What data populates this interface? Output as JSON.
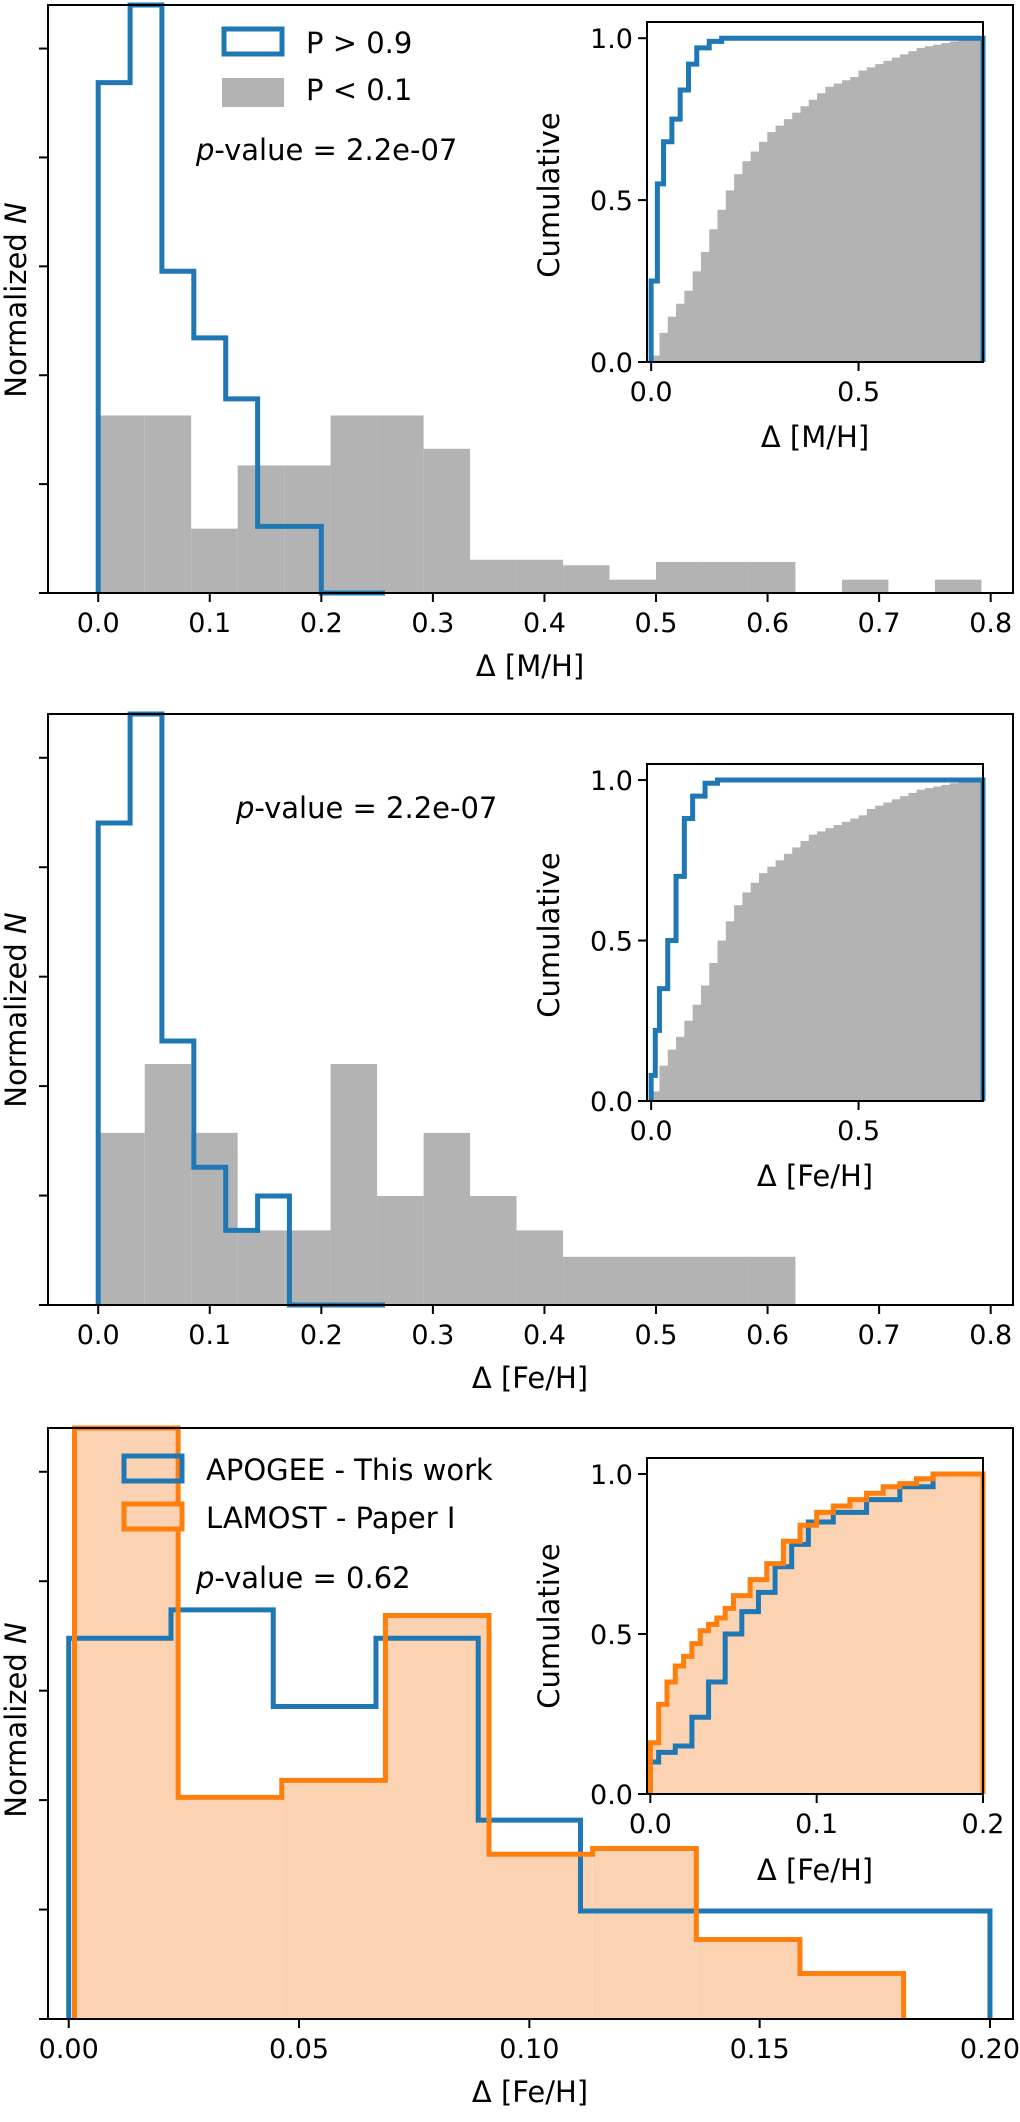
{
  "colors": {
    "blue": "#1f77b4",
    "orange": "#ff7f0e",
    "gray": "#b3b3b3",
    "orange_fill": "#fbd3b3"
  },
  "chart_data": [
    {
      "type": "histogram",
      "id": "panel1",
      "xlabel": "Δ [M/H]",
      "ylabel": "Normalized N",
      "xlim": [
        -0.045,
        0.82
      ],
      "ylim": [
        0,
        5.3
      ],
      "xticks": [
        "0.0",
        "0.1",
        "0.2",
        "0.3",
        "0.4",
        "0.5",
        "0.6",
        "0.7",
        "0.8"
      ],
      "annotation": "p-value = 2.2e-07",
      "legend": [
        "P > 0.9",
        "P < 0.1"
      ],
      "series": [
        {
          "name": "P > 0.9",
          "style": "step",
          "edges": [
            0.0,
            0.0286,
            0.0571,
            0.0857,
            0.1143,
            0.1429,
            0.1714,
            0.2,
            0.2286,
            0.2571
          ],
          "values": [
            4.6,
            5.3,
            2.9,
            2.3,
            1.75,
            0.6,
            0.6,
            0.0,
            0.0
          ]
        },
        {
          "name": "P < 0.1",
          "style": "fill",
          "edges": [
            0.0,
            0.0417,
            0.0833,
            0.125,
            0.1667,
            0.2083,
            0.25,
            0.2917,
            0.3333,
            0.375,
            0.4167,
            0.4583,
            0.5,
            0.5417,
            0.5833,
            0.625,
            0.6667,
            0.7083,
            0.75,
            0.7917
          ],
          "values": [
            1.6,
            1.6,
            0.58,
            1.15,
            1.15,
            1.6,
            1.6,
            1.3,
            0.3,
            0.3,
            0.25,
            0.12,
            0.28,
            0.28,
            0.28,
            0.0,
            0.12,
            0.0,
            0.12
          ]
        }
      ],
      "inset": {
        "xlabel": "Δ [M/H]",
        "ylabel": "Cumulative",
        "xlim": [
          -0.01,
          0.8
        ],
        "ylim": [
          0,
          1.05
        ],
        "xticks": [
          "0.0",
          "0.5"
        ],
        "yticks": [
          "0.0",
          "0.5",
          "1.0"
        ],
        "series": [
          {
            "name": "P > 0.9",
            "style": "step",
            "x": [
              0.0,
              0.015,
              0.03,
              0.05,
              0.07,
              0.09,
              0.11,
              0.14,
              0.17,
              0.8
            ],
            "y": [
              0.25,
              0.55,
              0.68,
              0.75,
              0.84,
              0.92,
              0.97,
              0.99,
              1.0,
              1.0
            ]
          },
          {
            "name": "P < 0.1",
            "style": "fill",
            "x": [
              0.0,
              0.02,
              0.04,
              0.06,
              0.08,
              0.1,
              0.12,
              0.14,
              0.16,
              0.18,
              0.2,
              0.22,
              0.24,
              0.26,
              0.28,
              0.3,
              0.32,
              0.34,
              0.36,
              0.38,
              0.4,
              0.42,
              0.44,
              0.46,
              0.48,
              0.5,
              0.52,
              0.54,
              0.56,
              0.58,
              0.6,
              0.62,
              0.64,
              0.66,
              0.68,
              0.7,
              0.72,
              0.74,
              0.76,
              0.78
            ],
            "y": [
              0.02,
              0.09,
              0.14,
              0.18,
              0.22,
              0.28,
              0.34,
              0.41,
              0.47,
              0.53,
              0.58,
              0.62,
              0.65,
              0.68,
              0.71,
              0.73,
              0.75,
              0.77,
              0.79,
              0.81,
              0.83,
              0.85,
              0.86,
              0.87,
              0.88,
              0.9,
              0.91,
              0.92,
              0.93,
              0.94,
              0.95,
              0.96,
              0.97,
              0.975,
              0.98,
              0.985,
              0.99,
              0.995,
              1.0,
              1.0
            ]
          }
        ]
      }
    },
    {
      "type": "histogram",
      "id": "panel2",
      "xlabel": "Δ [Fe/H]",
      "ylabel": "Normalized N",
      "xlim": [
        -0.045,
        0.82
      ],
      "ylim": [
        0,
        5.15
      ],
      "xticks": [
        "0.0",
        "0.1",
        "0.2",
        "0.3",
        "0.4",
        "0.5",
        "0.6",
        "0.7",
        "0.8"
      ],
      "annotation": "p-value = 2.2e-07",
      "series": [
        {
          "name": "P > 0.9",
          "style": "step",
          "edges": [
            0.0,
            0.0286,
            0.0571,
            0.0857,
            0.1143,
            0.1429,
            0.1714,
            0.2,
            0.2286,
            0.2571
          ],
          "values": [
            4.2,
            5.15,
            2.3,
            1.2,
            0.65,
            0.95,
            0.0,
            0.0,
            0.0
          ]
        },
        {
          "name": "P < 0.1",
          "style": "fill",
          "edges": [
            0.0,
            0.0417,
            0.0833,
            0.125,
            0.1667,
            0.2083,
            0.25,
            0.2917,
            0.3333,
            0.375,
            0.4167,
            0.4583,
            0.5,
            0.5417,
            0.5833,
            0.625,
            0.6667,
            0.7083,
            0.75,
            0.7917
          ],
          "values": [
            1.5,
            2.1,
            1.5,
            0.65,
            0.65,
            2.1,
            0.95,
            1.5,
            0.95,
            0.65,
            0.42,
            0.42,
            0.42,
            0.42,
            0.42,
            0.0,
            0.0,
            0.0,
            0.0
          ]
        }
      ],
      "inset": {
        "xlabel": "Δ [Fe/H]",
        "ylabel": "Cumulative",
        "xlim": [
          -0.01,
          0.8
        ],
        "ylim": [
          0,
          1.05
        ],
        "xticks": [
          "0.0",
          "0.5"
        ],
        "yticks": [
          "0.0",
          "0.5",
          "1.0"
        ],
        "series": [
          {
            "name": "P > 0.9",
            "style": "step",
            "x": [
              0.0,
              0.01,
              0.02,
              0.04,
              0.06,
              0.08,
              0.1,
              0.13,
              0.16,
              0.8
            ],
            "y": [
              0.08,
              0.22,
              0.35,
              0.5,
              0.7,
              0.88,
              0.95,
              0.99,
              1.0,
              1.0
            ]
          },
          {
            "name": "P < 0.1",
            "style": "fill",
            "x": [
              0.0,
              0.02,
              0.04,
              0.06,
              0.08,
              0.1,
              0.12,
              0.14,
              0.16,
              0.18,
              0.2,
              0.22,
              0.24,
              0.26,
              0.28,
              0.3,
              0.32,
              0.34,
              0.36,
              0.38,
              0.4,
              0.42,
              0.44,
              0.46,
              0.48,
              0.5,
              0.52,
              0.54,
              0.56,
              0.58,
              0.6,
              0.62,
              0.64,
              0.66,
              0.68,
              0.7,
              0.72,
              0.74,
              0.76,
              0.78
            ],
            "y": [
              0.03,
              0.11,
              0.16,
              0.2,
              0.25,
              0.3,
              0.36,
              0.43,
              0.5,
              0.56,
              0.61,
              0.65,
              0.68,
              0.71,
              0.73,
              0.75,
              0.77,
              0.79,
              0.81,
              0.83,
              0.84,
              0.85,
              0.86,
              0.87,
              0.88,
              0.89,
              0.91,
              0.92,
              0.93,
              0.94,
              0.95,
              0.96,
              0.97,
              0.975,
              0.98,
              0.985,
              0.99,
              0.995,
              1.0,
              1.0
            ]
          }
        ]
      }
    },
    {
      "type": "histogram",
      "id": "panel3",
      "xlabel": "Δ [Fe/H]",
      "ylabel": "Normalized N",
      "xlim": [
        -0.0045,
        0.205
      ],
      "ylim": [
        0,
        5.2
      ],
      "xticks": [
        "0.00",
        "0.05",
        "0.10",
        "0.15",
        "0.20"
      ],
      "annotation": "p-value = 0.62",
      "legend": [
        "APOGEE - This work",
        "LAMOST - Paper I"
      ],
      "series": [
        {
          "name": "APOGEE - This work",
          "style": "step",
          "color": "blue",
          "edges": [
            0.0,
            0.0222,
            0.0444,
            0.0667,
            0.0889,
            0.1111,
            0.1333,
            0.1556,
            0.1778,
            0.2
          ],
          "values": [
            3.35,
            3.6,
            2.75,
            3.35,
            1.75,
            0.95,
            0.95,
            0.95,
            0.95
          ]
        },
        {
          "name": "LAMOST - Paper I",
          "style": "stepfilled",
          "color": "orange",
          "edges": [
            0.00125,
            0.02375,
            0.04625,
            0.06875,
            0.09125,
            0.11375,
            0.13625,
            0.15875,
            0.18125
          ],
          "values": [
            5.2,
            1.95,
            2.1,
            3.55,
            1.45,
            1.5,
            0.7,
            0.4
          ]
        }
      ],
      "inset": {
        "xlabel": "Δ [Fe/H]",
        "ylabel": "Cumulative",
        "xlim": [
          -0.002,
          0.2
        ],
        "ylim": [
          0,
          1.05
        ],
        "xticks": [
          "0.0",
          "0.1",
          "0.2"
        ],
        "yticks": [
          "0.0",
          "0.5",
          "1.0"
        ],
        "series": [
          {
            "name": "APOGEE - This work",
            "style": "step",
            "color": "blue",
            "x": [
              0.0,
              0.005,
              0.015,
              0.025,
              0.035,
              0.045,
              0.055,
              0.065,
              0.075,
              0.085,
              0.095,
              0.11,
              0.13,
              0.15,
              0.17,
              0.2
            ],
            "y": [
              0.1,
              0.13,
              0.15,
              0.24,
              0.35,
              0.5,
              0.57,
              0.63,
              0.71,
              0.78,
              0.85,
              0.88,
              0.92,
              0.96,
              1.0,
              1.0
            ]
          },
          {
            "name": "LAMOST - Paper I",
            "style": "stepfilled",
            "color": "orange",
            "x": [
              0.0,
              0.005,
              0.01,
              0.015,
              0.02,
              0.025,
              0.03,
              0.035,
              0.04,
              0.045,
              0.05,
              0.06,
              0.07,
              0.08,
              0.09,
              0.1,
              0.11,
              0.12,
              0.13,
              0.14,
              0.15,
              0.16,
              0.17,
              0.18,
              0.2
            ],
            "y": [
              0.16,
              0.28,
              0.35,
              0.4,
              0.43,
              0.47,
              0.51,
              0.53,
              0.55,
              0.58,
              0.62,
              0.67,
              0.72,
              0.79,
              0.84,
              0.88,
              0.9,
              0.92,
              0.94,
              0.96,
              0.97,
              0.985,
              1.0,
              1.0,
              1.0
            ]
          }
        ]
      }
    }
  ]
}
